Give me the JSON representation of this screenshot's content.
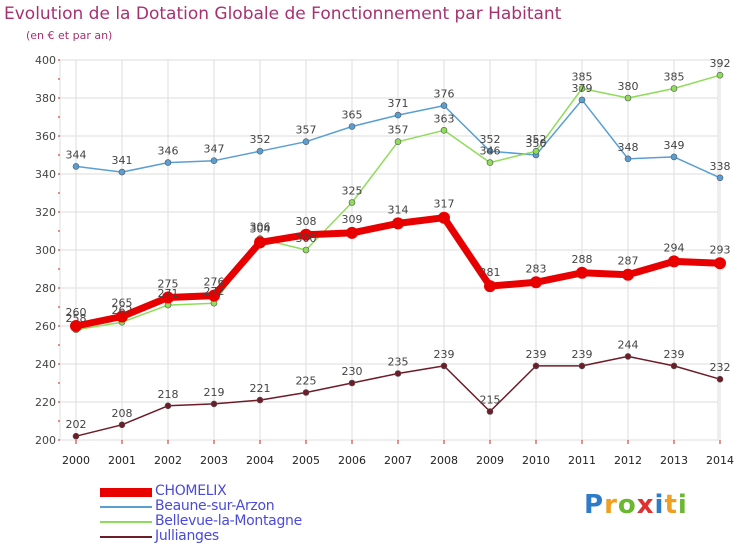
{
  "title": "Evolution de la Dotation Globale de Fonctionnement par Habitant",
  "subtitle": "(en € et par an)",
  "logo": {
    "text": "Proxiti",
    "colors": [
      "#2e7bc8",
      "#f0a020",
      "#6ab830",
      "#e03030",
      "#2e7bc8",
      "#f0a020",
      "#6ab830"
    ]
  },
  "chart_data": {
    "type": "line",
    "x": [
      2000,
      2001,
      2002,
      2003,
      2004,
      2005,
      2006,
      2007,
      2008,
      2009,
      2010,
      2011,
      2012,
      2013,
      2014
    ],
    "ylim": [
      200,
      400
    ],
    "yticks": [
      200,
      220,
      240,
      260,
      280,
      300,
      320,
      340,
      360,
      380,
      400
    ],
    "grid": true,
    "legend_position": "bottom-left",
    "series": [
      {
        "name": "CHOMELIX",
        "color": "#e80000",
        "values": [
          260,
          265,
          275,
          276,
          304,
          308,
          309,
          314,
          317,
          281,
          283,
          288,
          287,
          294,
          293
        ]
      },
      {
        "name": "Beaune-sur-Arzon",
        "color": "#5a9fd4",
        "values": [
          344,
          341,
          346,
          347,
          352,
          357,
          365,
          371,
          376,
          352,
          350,
          379,
          348,
          349,
          338
        ]
      },
      {
        "name": "Bellevue-la-Montagne",
        "color": "#8fdc5a",
        "values": [
          258,
          262,
          271,
          272,
          306,
          300,
          325,
          357,
          363,
          346,
          352,
          385,
          380,
          385,
          392
        ]
      },
      {
        "name": "Jullianges",
        "color": "#6e1c28",
        "values": [
          202,
          208,
          218,
          219,
          221,
          225,
          230,
          235,
          239,
          215,
          239,
          239,
          244,
          239,
          232
        ]
      }
    ]
  }
}
